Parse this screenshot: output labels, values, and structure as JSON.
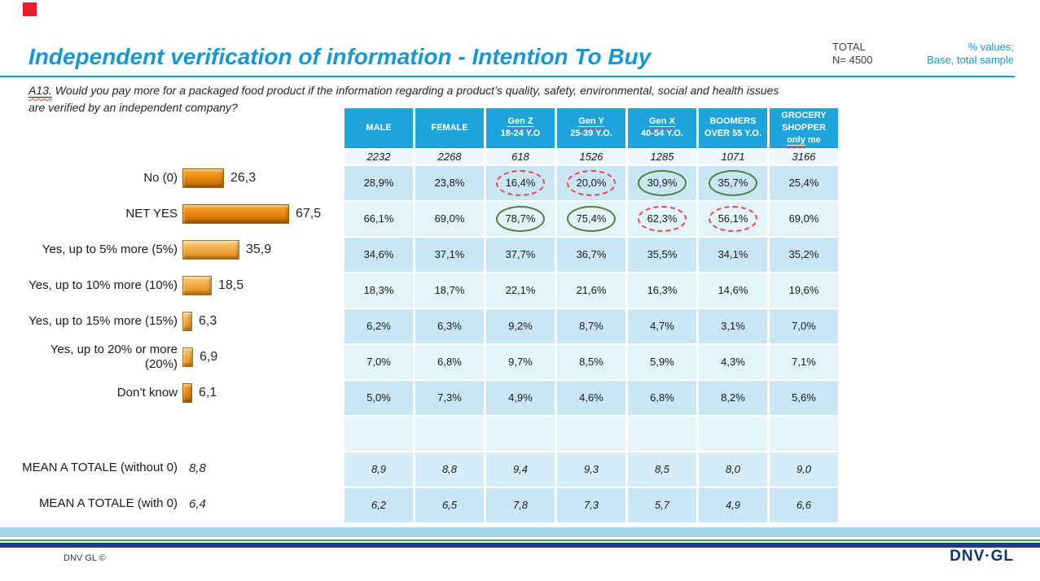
{
  "slide": {
    "title": "Independent verification of information - Intention To Buy",
    "total_label": "TOTAL",
    "total_n": "N= 4500",
    "values_note": "% values;",
    "base_note": "Base, total sample",
    "question_prefix": "A13.",
    "question_text": "Would you pay more for a packaged food product if the information regarding a product’s quality, safety, environmental, social and health issues are verified by an independent company?",
    "footer_copyright": "DNV GL ©",
    "footer_logo": "DNV·GL",
    "accent_color": "#1697d6",
    "bar_dark_color": "#e8870f",
    "bar_light_color": "#f5af4e",
    "significance_green": "#567f3f",
    "significance_red": "#f4444a"
  },
  "chart_data": [
    {
      "type": "bar",
      "title": "",
      "xlabel": "",
      "ylabel": "",
      "xlim": [
        0,
        70
      ],
      "categories": [
        "No (0)",
        "NET YES",
        "Yes, up to 5% more (5%)",
        "Yes, up to 10% more (10%)",
        "Yes, up to 15% more (15%)",
        "Yes, up to 20% or more (20%)",
        "Don’t know"
      ],
      "values": [
        26.3,
        67.5,
        35.9,
        18.5,
        6.3,
        6.9,
        6.1
      ],
      "value_labels": [
        "26,3",
        "67,5",
        "35,9",
        "18,5",
        "6,3",
        "6,9",
        "6,1"
      ],
      "bar_shades": [
        "dark",
        "dark",
        "light",
        "light",
        "light",
        "light",
        "dark"
      ],
      "annotations": [
        {
          "label": "MEAN A TOTALE (without 0)",
          "value": 8.8,
          "value_label": "8,8"
        },
        {
          "label": "MEAN A TOTALE (with 0)",
          "value": 6.4,
          "value_label": "6,4"
        }
      ]
    },
    {
      "type": "table",
      "columns": [
        {
          "lines": [
            {
              "t": "MALE"
            }
          ]
        },
        {
          "lines": [
            {
              "t": "FEMALE"
            }
          ]
        },
        {
          "lines": [
            {
              "t": "Gen Z",
              "u": true
            },
            {
              "t": "18-24 Y.O"
            }
          ]
        },
        {
          "lines": [
            {
              "t": "Gen Y",
              "u": true
            },
            {
              "t": "25-39 Y.O."
            }
          ]
        },
        {
          "lines": [
            {
              "t": "Gen X",
              "u": true
            },
            {
              "t": "40-54 Y.O."
            }
          ]
        },
        {
          "lines": [
            {
              "t": "BOOMERS"
            },
            {
              "t": "OVER 55 Y.O."
            }
          ]
        },
        {
          "lines": [
            {
              "t": "GROCERY"
            },
            {
              "t": "SHOPPER"
            },
            {
              "t": "only me",
              "u_first_word": true
            }
          ]
        }
      ],
      "base_row": [
        "2232",
        "2268",
        "618",
        "1526",
        "1285",
        "1071",
        "3166"
      ],
      "rows": [
        {
          "cells": [
            "28,9%",
            "23,8%",
            "16,4%",
            "20,0%",
            "30,9%",
            "35,7%",
            "25,4%"
          ],
          "marks": [
            "",
            "",
            "red",
            "red",
            "green",
            "green",
            ""
          ]
        },
        {
          "cells": [
            "66,1%",
            "69,0%",
            "78,7%",
            "75,4%",
            "62,3%",
            "56,1%",
            "69,0%"
          ],
          "marks": [
            "",
            "",
            "green",
            "green",
            "red",
            "red",
            ""
          ]
        },
        {
          "cells": [
            "34,6%",
            "37,1%",
            "37,7%",
            "36,7%",
            "35,5%",
            "34,1%",
            "35,2%"
          ],
          "marks": [
            "",
            "",
            "",
            "",
            "",
            "",
            ""
          ]
        },
        {
          "cells": [
            "18,3%",
            "18,7%",
            "22,1%",
            "21,6%",
            "16,3%",
            "14,6%",
            "19,6%"
          ],
          "marks": [
            "",
            "",
            "",
            "",
            "",
            "",
            ""
          ]
        },
        {
          "cells": [
            "6,2%",
            "6,3%",
            "9,2%",
            "8,7%",
            "4,7%",
            "3,1%",
            "7,0%"
          ],
          "marks": [
            "",
            "",
            "",
            "",
            "",
            "",
            ""
          ]
        },
        {
          "cells": [
            "7,0%",
            "6,8%",
            "9,7%",
            "8,5%",
            "5,9%",
            "4,3%",
            "7,1%"
          ],
          "marks": [
            "",
            "",
            "",
            "",
            "",
            "",
            ""
          ]
        },
        {
          "cells": [
            "5,0%",
            "7,3%",
            "4,9%",
            "4,6%",
            "6,8%",
            "8,2%",
            "5,6%"
          ],
          "marks": [
            "",
            "",
            "",
            "",
            "",
            "",
            ""
          ]
        }
      ],
      "mean_rows": [
        {
          "cells": [
            "8,9",
            "8,8",
            "9,4",
            "9,3",
            "8,5",
            "8,0",
            "9,0"
          ]
        },
        {
          "cells": [
            "6,2",
            "6,5",
            "7,8",
            "7,3",
            "5,7",
            "4,9",
            "6,6"
          ]
        }
      ]
    }
  ]
}
